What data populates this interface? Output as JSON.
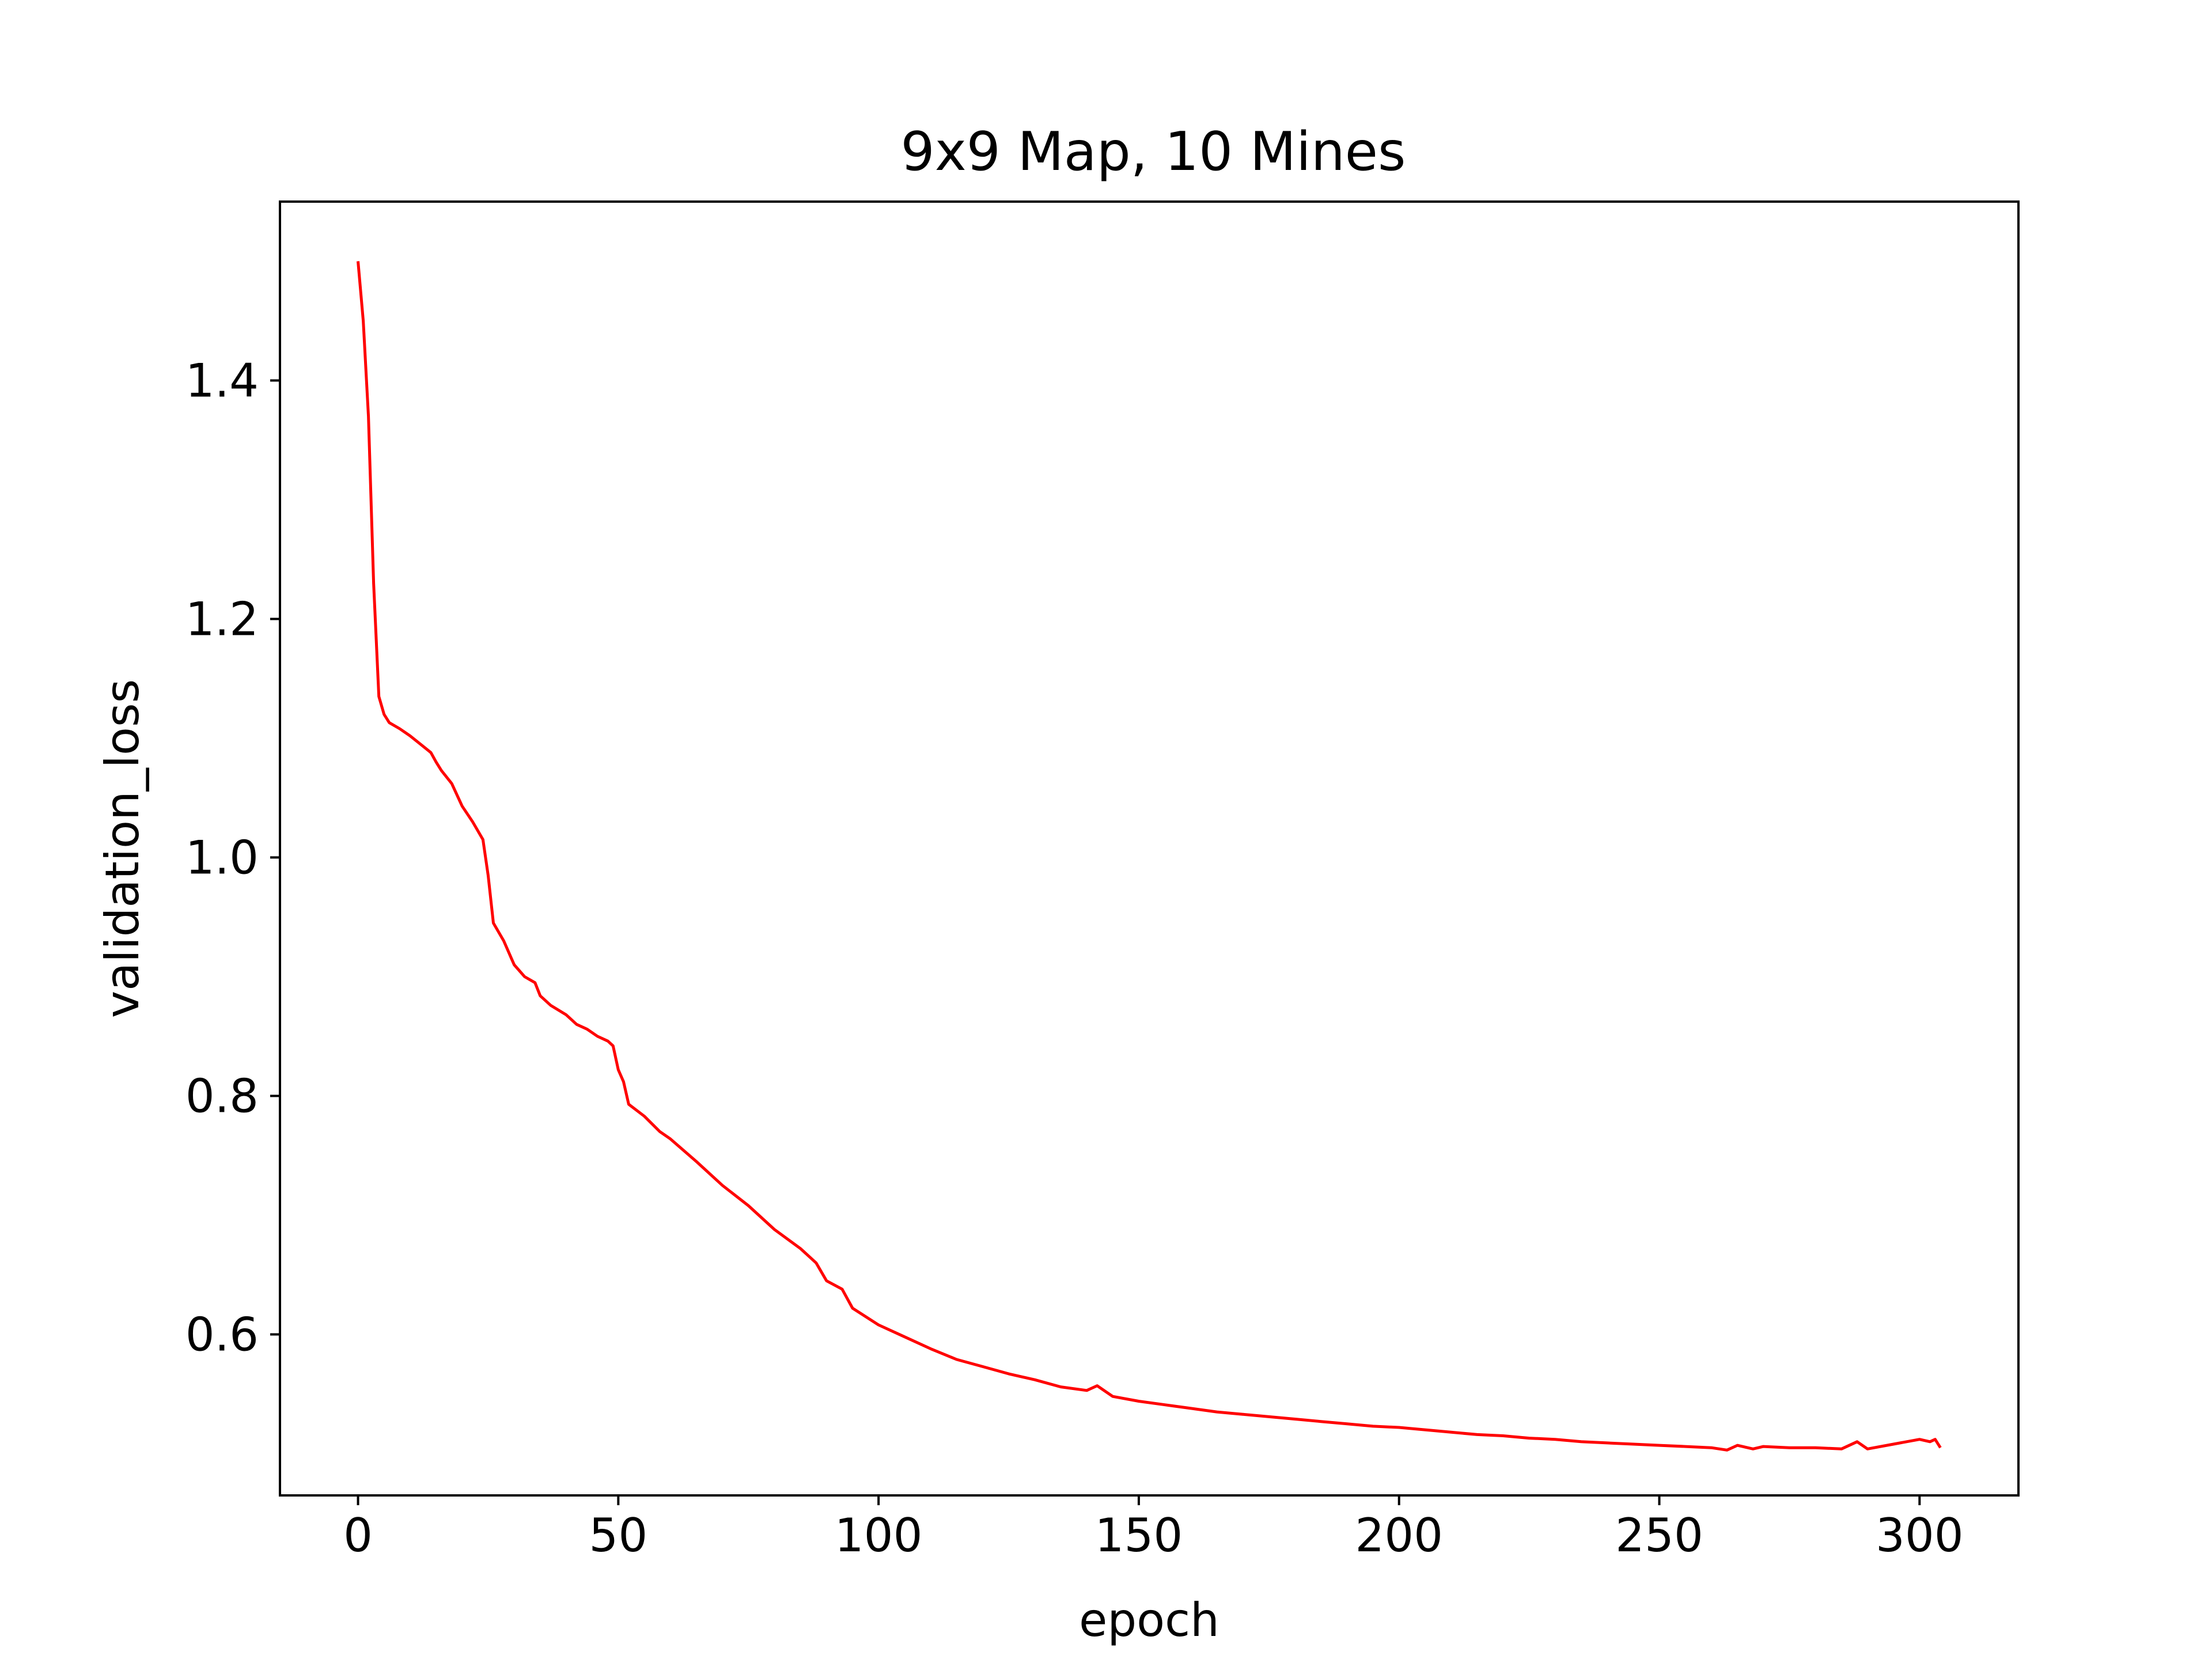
{
  "chart_data": {
    "type": "line",
    "title": "9x9 Map, 10 Mines",
    "xlabel": "epoch",
    "ylabel": "validation_loss",
    "xlim": [
      -15,
      319
    ],
    "ylim": [
      0.465,
      1.55
    ],
    "xticks": [
      0,
      50,
      100,
      150,
      200,
      250,
      300
    ],
    "yticks": [
      0.6,
      0.8,
      1.0,
      1.2,
      1.4
    ],
    "xtick_labels": [
      "0",
      "50",
      "100",
      "150",
      "200",
      "250",
      "300"
    ],
    "ytick_labels": [
      "0.6",
      "0.8",
      "1.0",
      "1.2",
      "1.4"
    ],
    "grid": false,
    "legend": "none",
    "series": [
      {
        "color": "#ff0000",
        "x": [
          0,
          1,
          2,
          3,
          4,
          5,
          6,
          8,
          10,
          12,
          14,
          15,
          16,
          18,
          20,
          22,
          24,
          25,
          26,
          28,
          30,
          32,
          34,
          35,
          37,
          40,
          42,
          44,
          46,
          48,
          49,
          50,
          51,
          52,
          55,
          58,
          60,
          65,
          70,
          75,
          80,
          85,
          88,
          90,
          93,
          95,
          100,
          105,
          110,
          115,
          120,
          125,
          130,
          135,
          140,
          142,
          145,
          150,
          155,
          160,
          165,
          170,
          175,
          180,
          185,
          190,
          195,
          200,
          205,
          210,
          215,
          220,
          225,
          230,
          235,
          240,
          245,
          250,
          255,
          260,
          263,
          265,
          268,
          270,
          275,
          280,
          285,
          288,
          290,
          295,
          300,
          302,
          303,
          304
        ],
        "y": [
          1.5,
          1.45,
          1.37,
          1.23,
          1.135,
          1.12,
          1.113,
          1.108,
          1.102,
          1.095,
          1.088,
          1.08,
          1.073,
          1.062,
          1.043,
          1.03,
          1.015,
          0.985,
          0.945,
          0.93,
          0.91,
          0.9,
          0.895,
          0.884,
          0.876,
          0.868,
          0.86,
          0.856,
          0.85,
          0.846,
          0.842,
          0.822,
          0.812,
          0.793,
          0.783,
          0.77,
          0.764,
          0.745,
          0.725,
          0.708,
          0.688,
          0.672,
          0.66,
          0.645,
          0.638,
          0.622,
          0.608,
          0.598,
          0.588,
          0.579,
          0.573,
          0.567,
          0.562,
          0.556,
          0.553,
          0.557,
          0.548,
          0.544,
          0.541,
          0.538,
          0.535,
          0.533,
          0.531,
          0.529,
          0.527,
          0.525,
          0.523,
          0.522,
          0.52,
          0.518,
          0.516,
          0.515,
          0.513,
          0.512,
          0.51,
          0.509,
          0.508,
          0.507,
          0.506,
          0.505,
          0.503,
          0.507,
          0.504,
          0.506,
          0.505,
          0.505,
          0.504,
          0.51,
          0.504,
          0.508,
          0.512,
          0.51,
          0.512,
          0.505
        ]
      }
    ]
  }
}
